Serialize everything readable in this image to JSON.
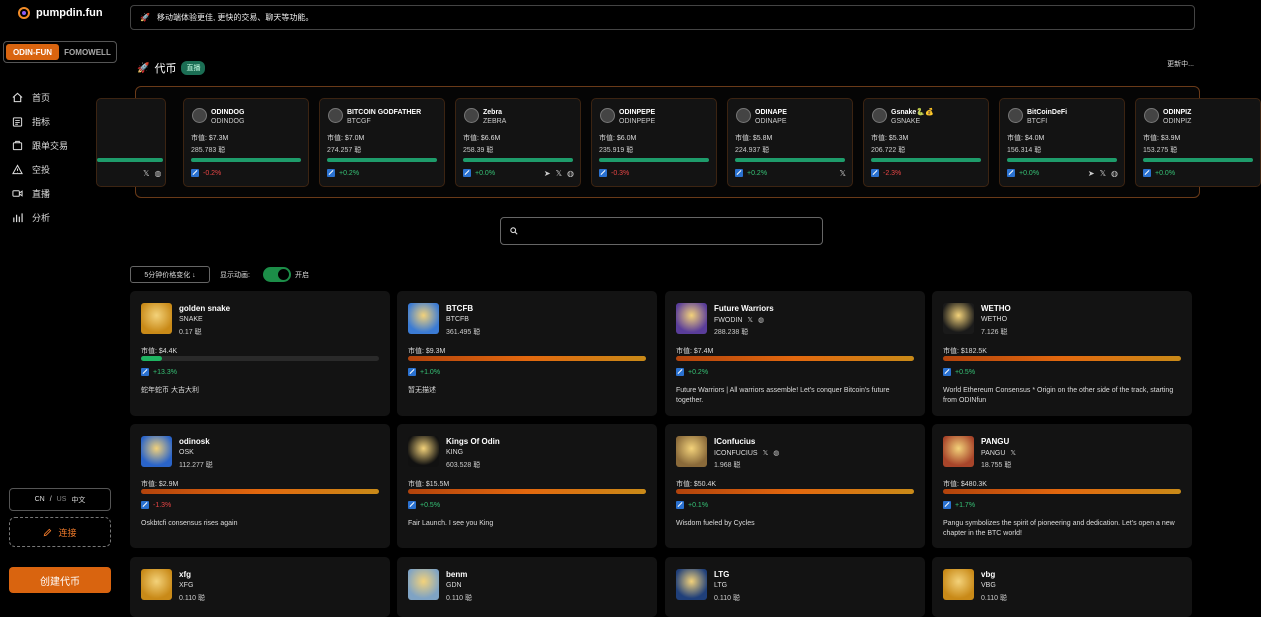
{
  "brand": {
    "name": "pumpdin.fun"
  },
  "modes": [
    "ODIN-FUN",
    "FOMOWELL"
  ],
  "active_mode": 0,
  "nav": [
    {
      "label": "首页",
      "icon": "home-icon"
    },
    {
      "label": "指标",
      "icon": "metrics-icon"
    },
    {
      "label": "跟单交易",
      "icon": "copy-trade-icon"
    },
    {
      "label": "空投",
      "icon": "airdrop-icon"
    },
    {
      "label": "直播",
      "icon": "live-icon"
    },
    {
      "label": "分析",
      "icon": "analytics-icon"
    }
  ],
  "lang": {
    "cn": "CN",
    "sep": "/",
    "us": "US",
    "label": "中文"
  },
  "connect_label": "连接",
  "create_label": "创建代币",
  "banner_text": "移动端体验更佳, 更快的交易、聊天等功能。",
  "section": {
    "title": "代币",
    "badge": "直播",
    "updating": "更新中..."
  },
  "ticker": [
    {
      "name": "ODINDOG",
      "symbol": "ODINDOG",
      "mcap": "市值: $7.3M",
      "holders": "285.783 聪",
      "change": "-0.2%",
      "dir": "down",
      "socials": []
    },
    {
      "name": "BITCOIN GODFATHER",
      "symbol": "BTCGF",
      "mcap": "市值: $7.0M",
      "holders": "274.257 聪",
      "change": "+0.2%",
      "dir": "up",
      "socials": []
    },
    {
      "name": "Zebra",
      "symbol": "ZEBRA",
      "mcap": "市值: $6.6M",
      "holders": "258.39 聪",
      "change": "+0.0%",
      "dir": "up",
      "socials": [
        "➤",
        "𝕏",
        "◍"
      ]
    },
    {
      "name": "ODINPEPE",
      "symbol": "ODINPEPE",
      "mcap": "市值: $6.0M",
      "holders": "235.919 聪",
      "change": "-0.3%",
      "dir": "down",
      "socials": []
    },
    {
      "name": "ODINAPE",
      "symbol": "ODINAPE",
      "mcap": "市值: $5.8M",
      "holders": "224.937 聪",
      "change": "+0.2%",
      "dir": "up",
      "socials": [
        "𝕏"
      ]
    },
    {
      "name": "Gsnake🐍💰",
      "symbol": "GSNAKE",
      "mcap": "市值: $5.3M",
      "holders": "206.722 聪",
      "change": "-2.3%",
      "dir": "down",
      "socials": []
    },
    {
      "name": "BitCoinDeFi",
      "symbol": "BTCFI",
      "mcap": "市值: $4.0M",
      "holders": "156.314 聪",
      "change": "+0.0%",
      "dir": "up",
      "socials": [
        "➤",
        "𝕏",
        "◍"
      ]
    },
    {
      "name": "ODINPIZ",
      "symbol": "ODINPIZ",
      "mcap": "市值: $3.9M",
      "holders": "153.275 聪",
      "change": "+0.0%",
      "dir": "up",
      "socials": []
    }
  ],
  "ticker_partial_socials": [
    "𝕏",
    "◍"
  ],
  "search": {
    "placeholder": ""
  },
  "sort": {
    "label": "5分钟价格变化 ↓"
  },
  "animation": {
    "label": "显示动画:",
    "state": "开启",
    "enabled": true
  },
  "cards": [
    {
      "name": "golden snake",
      "symbol": "SNAKE",
      "holders": "0.17 聪",
      "mcap": "市值: $4.4K",
      "progress": 0.09,
      "bar": "green",
      "change": "+13.3%",
      "dir": "up",
      "desc": "蛇年蛇币 大吉大利",
      "socials": [],
      "avatar_color": "#c98a18"
    },
    {
      "name": "BTCFB",
      "symbol": "BTCFB",
      "holders": "361.495 聪",
      "mcap": "市值: $9.3M",
      "progress": 1.0,
      "bar": "orange",
      "change": "+1.0%",
      "dir": "up",
      "desc": "暂无描述",
      "socials": [],
      "avatar_color": "#3b7bd4"
    },
    {
      "name": "Future Warriors",
      "symbol": "FWODIN",
      "holders": "288.238 聪",
      "mcap": "市值: $7.4M",
      "progress": 1.0,
      "bar": "orange",
      "change": "+0.2%",
      "dir": "up",
      "desc": "Future Warriors | All warriors assemble! Let's conquer Bitcoin's future together.",
      "socials": [
        "𝕏",
        "◍"
      ],
      "avatar_color": "#5a3d9a"
    },
    {
      "name": "WETHO",
      "symbol": "WETHO",
      "holders": "7.126 聪",
      "mcap": "市值: $182.5K",
      "progress": 1.0,
      "bar": "orange",
      "change": "+0.5%",
      "dir": "up",
      "desc": "World Ethereum Consensus * Origin on the other side of the track, starting from ODINfun",
      "socials": [],
      "avatar_color": "#1a1a1a"
    },
    {
      "name": "odinosk",
      "symbol": "OSK",
      "holders": "112.277 聪",
      "mcap": "市值: $2.9M",
      "progress": 1.0,
      "bar": "orange",
      "change": "-1.3%",
      "dir": "down",
      "desc": "Oskbtcfi consensus rises again",
      "socials": [],
      "avatar_color": "#2a64c9"
    },
    {
      "name": "Kings Of Odin",
      "symbol": "KING",
      "holders": "603.528 聪",
      "mcap": "市值: $15.5M",
      "progress": 1.0,
      "bar": "orange",
      "change": "+0.5%",
      "dir": "up",
      "desc": "Fair Launch. I see you King",
      "socials": [],
      "avatar_color": "#111111"
    },
    {
      "name": "IConfucius",
      "symbol": "ICONFUCIUS",
      "holders": "1.968 聪",
      "mcap": "市值: $50.4K",
      "progress": 1.0,
      "bar": "orange",
      "change": "+0.1%",
      "dir": "up",
      "desc": "Wisdom fueled by Cycles",
      "socials": [
        "𝕏",
        "◍"
      ],
      "avatar_color": "#8a6a3a"
    },
    {
      "name": "PANGU",
      "symbol": "PANGU",
      "holders": "18.755 聪",
      "mcap": "市值: $480.3K",
      "progress": 1.0,
      "bar": "orange",
      "change": "+1.7%",
      "dir": "up",
      "desc": "Pangu symbolizes the spirit of pioneering and dedication. Let's open a new chapter in the BTC world!",
      "socials": [
        "𝕏"
      ],
      "avatar_color": "#a8452a"
    },
    {
      "name": "xfg",
      "symbol": "XFG",
      "holders": "0.110 聪",
      "mcap": "",
      "progress": 0,
      "bar": "orange",
      "change": "",
      "dir": "up",
      "desc": "",
      "socials": [],
      "avatar_color": "#c98a18"
    },
    {
      "name": "benm",
      "symbol": "GDN",
      "holders": "0.110 聪",
      "mcap": "",
      "progress": 0,
      "bar": "orange",
      "change": "",
      "dir": "up",
      "desc": "",
      "socials": [],
      "avatar_color": "#7fa3c4"
    },
    {
      "name": "LTG",
      "symbol": "LTG",
      "holders": "0.110 聪",
      "mcap": "",
      "progress": 0,
      "bar": "orange",
      "change": "",
      "dir": "up",
      "desc": "",
      "socials": [],
      "avatar_color": "#1f3f7a"
    },
    {
      "name": "vbg",
      "symbol": "VBG",
      "holders": "0.110 聪",
      "mcap": "",
      "progress": 0,
      "bar": "orange",
      "change": "",
      "dir": "up",
      "desc": "",
      "socials": [],
      "avatar_color": "#c98a18"
    }
  ],
  "colors": {
    "accent": "#d9640f",
    "up": "#36c276",
    "down": "#e84545",
    "live": "#1b6e54"
  }
}
